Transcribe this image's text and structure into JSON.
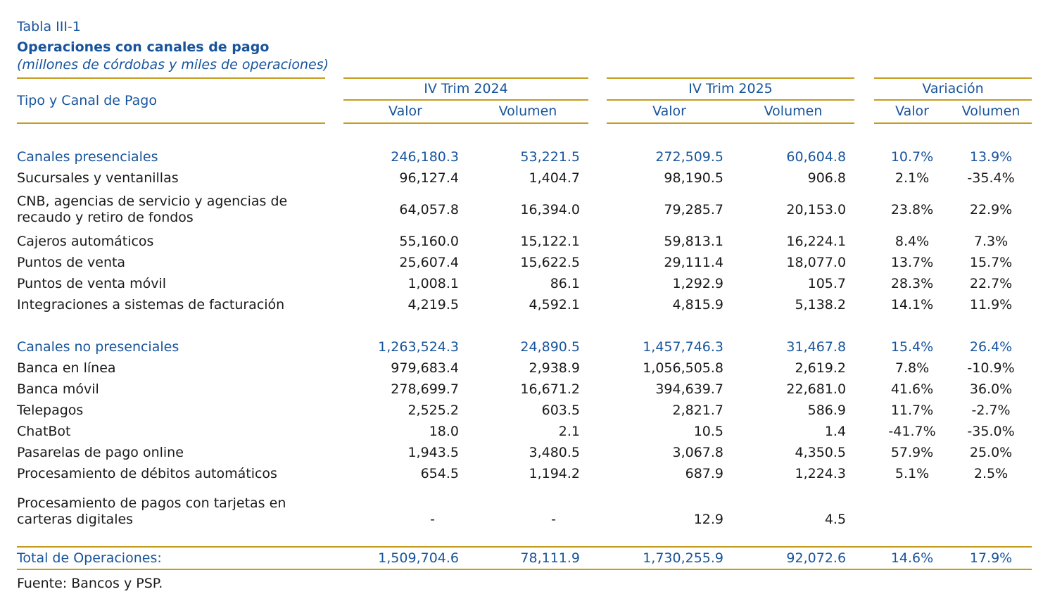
{
  "title": {
    "table_number": "Tabla III-1",
    "heading": "Operaciones con canales de pago",
    "subtitle": "(millones de córdobas y miles de operaciones)"
  },
  "colors": {
    "accent_blue": "#17549c",
    "rule_gold": "#c69c1e",
    "body_text": "#1a1a1a"
  },
  "table": {
    "row_header": "Tipo y Canal de Pago",
    "groups": [
      {
        "label": "IV Trim 2024",
        "columns": [
          "Valor",
          "Volumen"
        ]
      },
      {
        "label": "IV Trim 2025",
        "columns": [
          "Valor",
          "Volumen"
        ]
      },
      {
        "label": "Variación",
        "columns": [
          "Valor",
          "Volumen"
        ]
      }
    ],
    "rows": [
      {
        "style": "section",
        "label": "Canales presenciales",
        "values": [
          "246,180.3",
          "53,221.5",
          "272,509.5",
          "60,604.8",
          "10.7%",
          "13.9%"
        ]
      },
      {
        "style": "item",
        "label": "Sucursales y ventanillas",
        "values": [
          "96,127.4",
          "1,404.7",
          "98,190.5",
          "906.8",
          "2.1%",
          "-35.4%"
        ]
      },
      {
        "style": "item",
        "wrap": true,
        "label": "CNB, agencias de servicio y agencias de recaudo y retiro de fondos",
        "values": [
          "64,057.8",
          "16,394.0",
          "79,285.7",
          "20,153.0",
          "23.8%",
          "22.9%"
        ]
      },
      {
        "style": "item",
        "label": "Cajeros automáticos",
        "values": [
          "55,160.0",
          "15,122.1",
          "59,813.1",
          "16,224.1",
          "8.4%",
          "7.3%"
        ]
      },
      {
        "style": "item",
        "label": "Puntos de venta",
        "values": [
          "25,607.4",
          "15,622.5",
          "29,111.4",
          "18,077.0",
          "13.7%",
          "15.7%"
        ]
      },
      {
        "style": "item",
        "label": "Puntos de venta móvil",
        "values": [
          "1,008.1",
          "86.1",
          "1,292.9",
          "105.7",
          "28.3%",
          "22.7%"
        ]
      },
      {
        "style": "item",
        "label": "Integraciones a sistemas de facturación",
        "values": [
          "4,219.5",
          "4,592.1",
          "4,815.9",
          "5,138.2",
          "14.1%",
          "11.9%"
        ]
      },
      {
        "style": "spacer"
      },
      {
        "style": "section",
        "label": "Canales no presenciales",
        "values": [
          "1,263,524.3",
          "24,890.5",
          "1,457,746.3",
          "31,467.8",
          "15.4%",
          "26.4%"
        ]
      },
      {
        "style": "item",
        "label": "Banca en línea",
        "values": [
          "979,683.4",
          "2,938.9",
          "1,056,505.8",
          "2,619.2",
          "7.8%",
          "-10.9%"
        ]
      },
      {
        "style": "item",
        "label": "Banca móvil",
        "values": [
          "278,699.7",
          "16,671.2",
          "394,639.7",
          "22,681.0",
          "41.6%",
          "36.0%"
        ]
      },
      {
        "style": "item",
        "label": "Telepagos",
        "values": [
          "2,525.2",
          "603.5",
          "2,821.7",
          "586.9",
          "11.7%",
          "-2.7%"
        ]
      },
      {
        "style": "item",
        "label": "ChatBot",
        "values": [
          "18.0",
          "2.1",
          "10.5",
          "1.4",
          "-41.7%",
          "-35.0%"
        ]
      },
      {
        "style": "item",
        "label": "Pasarelas de pago online",
        "values": [
          "1,943.5",
          "3,480.5",
          "3,067.8",
          "4,350.5",
          "57.9%",
          "25.0%"
        ]
      },
      {
        "style": "item",
        "label": "Procesamiento de débitos automáticos",
        "values": [
          "654.5",
          "1,194.2",
          "687.9",
          "1,224.3",
          "5.1%",
          "2.5%"
        ]
      },
      {
        "style": "item",
        "wrap": true,
        "valign": "bottom",
        "label": "Procesamiento de pagos con tarjetas en carteras digitales",
        "values": [
          "-",
          "-",
          "12.9",
          "4.5",
          "",
          ""
        ]
      }
    ],
    "total": {
      "label": "Total de Operaciones:",
      "values": [
        "1,509,704.6",
        "78,111.9",
        "1,730,255.9",
        "92,072.6",
        "14.6%",
        "17.9%"
      ]
    },
    "source": "Fuente: Bancos y PSP."
  }
}
